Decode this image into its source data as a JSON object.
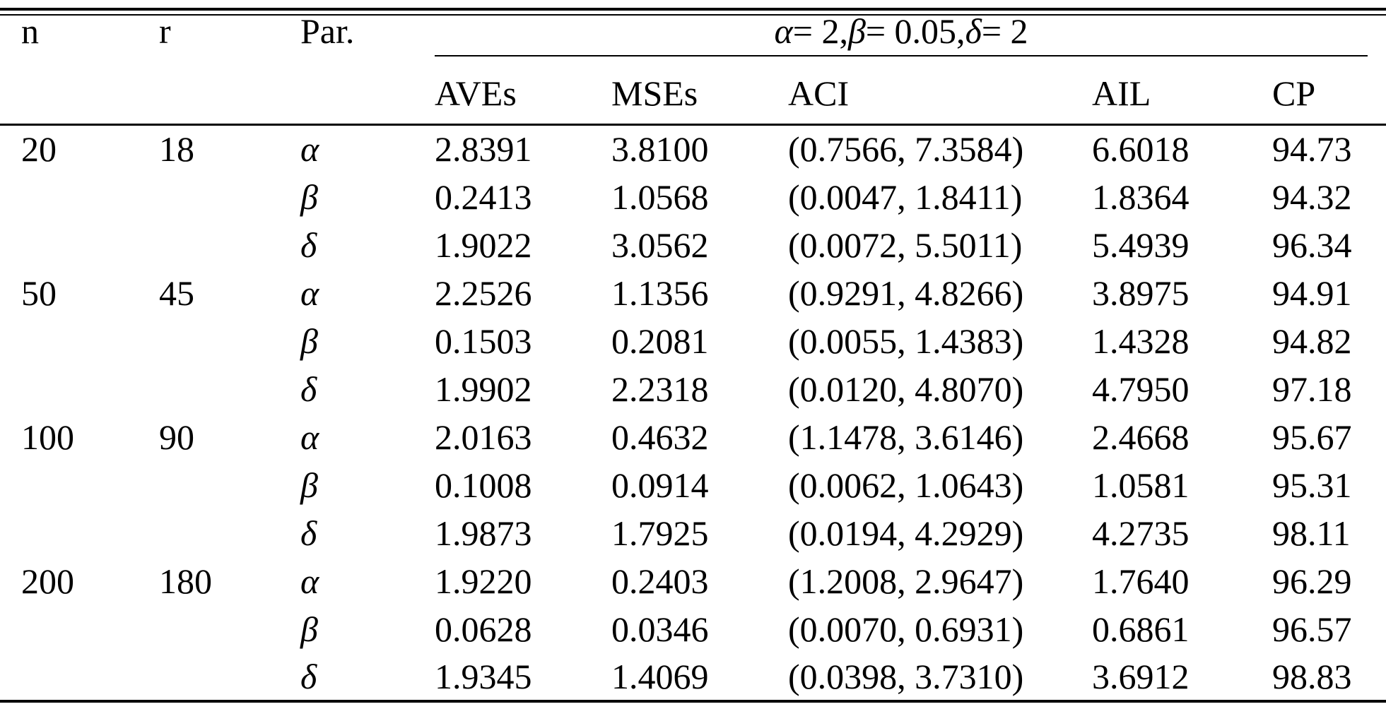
{
  "page": {
    "background": "#ffffff",
    "text_color": "#000000"
  },
  "table": {
    "headers": {
      "n": "n",
      "r": "r",
      "par": "Par.",
      "group": {
        "full_text": "α= 2, β= 0.05, δ= 2",
        "parts": [
          {
            "t": "α",
            "i": true
          },
          {
            "t": "= 2, ",
            "i": false
          },
          {
            "t": "β",
            "i": true
          },
          {
            "t": "= 0.05, ",
            "i": false
          },
          {
            "t": "δ",
            "i": true
          },
          {
            "t": "= 2",
            "i": false
          }
        ]
      },
      "sub": [
        "AVEs",
        "MSEs",
        "ACI",
        "AIL",
        "CP"
      ]
    },
    "rows": [
      {
        "n": "20",
        "r": "18",
        "par": "α",
        "aves": "2.8391",
        "mses": "3.8100",
        "aci": "(0.7566, 7.3584)",
        "ail": "6.6018",
        "cp": "94.73"
      },
      {
        "n": "",
        "r": "",
        "par": "β",
        "aves": "0.2413",
        "mses": "1.0568",
        "aci": "(0.0047, 1.8411)",
        "ail": "1.8364",
        "cp": "94.32"
      },
      {
        "n": "",
        "r": "",
        "par": "δ",
        "aves": "1.9022",
        "mses": "3.0562",
        "aci": "(0.0072, 5.5011)",
        "ail": "5.4939",
        "cp": "96.34"
      },
      {
        "n": "50",
        "r": "45",
        "par": "α",
        "aves": "2.2526",
        "mses": "1.1356",
        "aci": "(0.9291, 4.8266)",
        "ail": "3.8975",
        "cp": "94.91"
      },
      {
        "n": "",
        "r": "",
        "par": "β",
        "aves": "0.1503",
        "mses": "0.2081",
        "aci": "(0.0055, 1.4383)",
        "ail": "1.4328",
        "cp": "94.82"
      },
      {
        "n": "",
        "r": "",
        "par": "δ",
        "aves": "1.9902",
        "mses": "2.2318",
        "aci": "(0.0120, 4.8070)",
        "ail": "4.7950",
        "cp": "97.18"
      },
      {
        "n": "100",
        "r": "90",
        "par": "α",
        "aves": "2.0163",
        "mses": "0.4632",
        "aci": "(1.1478, 3.6146)",
        "ail": "2.4668",
        "cp": "95.67"
      },
      {
        "n": "",
        "r": "",
        "par": "β",
        "aves": "0.1008",
        "mses": "0.0914",
        "aci": "(0.0062, 1.0643)",
        "ail": "1.0581",
        "cp": "95.31"
      },
      {
        "n": "",
        "r": "",
        "par": "δ",
        "aves": "1.9873",
        "mses": "1.7925",
        "aci": "(0.0194, 4.2929)",
        "ail": "4.2735",
        "cp": "98.11"
      },
      {
        "n": "200",
        "r": "180",
        "par": "α",
        "aves": "1.9220",
        "mses": "0.2403",
        "aci": "(1.2008, 2.9647)",
        "ail": "1.7640",
        "cp": "96.29"
      },
      {
        "n": "",
        "r": "",
        "par": "β",
        "aves": "0.0628",
        "mses": "0.0346",
        "aci": "(0.0070, 0.6931)",
        "ail": "0.6861",
        "cp": "96.57"
      },
      {
        "n": "",
        "r": "",
        "par": "δ",
        "aves": "1.9345",
        "mses": "1.4069",
        "aci": "(0.0398, 3.7310)",
        "ail": "3.6912",
        "cp": "98.83"
      }
    ]
  }
}
